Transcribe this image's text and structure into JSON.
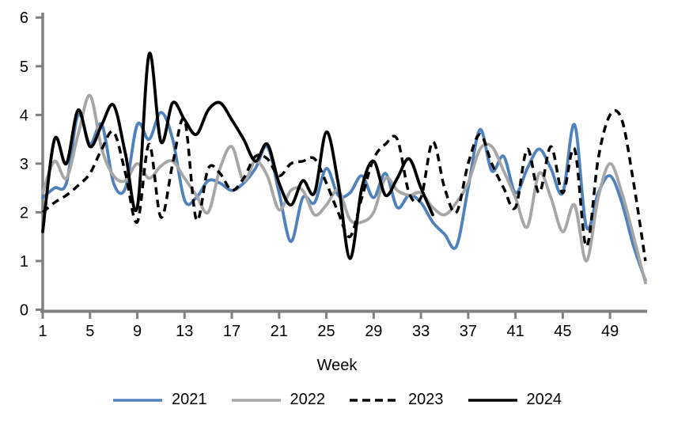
{
  "x_axis_title": "Week",
  "chart_data": {
    "type": "line",
    "title": "",
    "xlabel": "Week",
    "ylabel": "",
    "xlim": [
      1,
      52
    ],
    "ylim": [
      0,
      6
    ],
    "grid": false,
    "legend_position": "bottom",
    "axis_color": "#808080",
    "text_color": "#000000",
    "x_ticks": [
      1,
      5,
      9,
      13,
      17,
      21,
      25,
      29,
      33,
      37,
      41,
      45,
      49
    ],
    "y_ticks": [
      0,
      1,
      2,
      3,
      4,
      5,
      6
    ],
    "x_start_week": 1,
    "series": [
      {
        "name": "2021",
        "color": "#4F81BD",
        "style": "solid",
        "values": [
          2.3,
          2.5,
          2.6,
          4.0,
          3.4,
          3.8,
          2.6,
          2.5,
          3.8,
          3.5,
          4.05,
          3.5,
          2.25,
          2.3,
          2.65,
          2.6,
          2.45,
          2.6,
          2.9,
          3.35,
          2.4,
          1.4,
          2.3,
          2.2,
          2.9,
          2.35,
          2.4,
          2.75,
          2.3,
          2.8,
          2.1,
          2.35,
          2.2,
          1.8,
          1.55,
          1.3,
          2.5,
          3.7,
          2.85,
          3.15,
          2.4,
          2.9,
          3.3,
          2.9,
          2.4,
          3.8,
          1.7,
          2.4,
          2.75,
          2.2,
          1.3,
          0.6
        ]
      },
      {
        "name": "2022",
        "color": "#A6A6A6",
        "style": "solid",
        "values": [
          2.4,
          3.05,
          2.7,
          3.6,
          4.4,
          3.3,
          2.75,
          2.65,
          3.0,
          2.7,
          2.95,
          3.05,
          2.7,
          2.35,
          2.0,
          2.9,
          3.35,
          2.65,
          3.05,
          2.75,
          2.05,
          2.45,
          2.45,
          1.95,
          2.15,
          2.45,
          1.85,
          1.8,
          2.0,
          2.7,
          2.45,
          2.35,
          2.4,
          2.1,
          1.95,
          2.2,
          2.6,
          3.3,
          3.35,
          2.85,
          2.3,
          1.7,
          2.8,
          2.3,
          1.6,
          2.15,
          1.0,
          2.3,
          3.0,
          2.4,
          1.5,
          0.55
        ]
      },
      {
        "name": "2023",
        "color": "#000000",
        "style": "dashed",
        "values": [
          2.0,
          2.2,
          2.35,
          2.55,
          2.8,
          3.3,
          3.65,
          2.8,
          1.8,
          3.4,
          1.9,
          3.0,
          3.9,
          1.85,
          2.9,
          2.8,
          2.45,
          2.7,
          3.15,
          3.1,
          2.75,
          3.0,
          3.05,
          3.1,
          2.6,
          2.0,
          1.5,
          2.3,
          3.1,
          3.4,
          3.5,
          2.4,
          2.3,
          3.45,
          2.5,
          2.0,
          3.0,
          3.6,
          3.0,
          2.5,
          2.1,
          3.3,
          2.4,
          3.35,
          2.4,
          3.3,
          1.3,
          3.1,
          4.0,
          3.9,
          2.6,
          1.0
        ]
      },
      {
        "name": "2024",
        "color": "#000000",
        "style": "solid",
        "values": [
          1.6,
          3.5,
          3.0,
          4.1,
          3.35,
          3.8,
          4.2,
          3.2,
          2.1,
          5.25,
          3.45,
          4.25,
          3.9,
          3.6,
          4.1,
          4.25,
          3.9,
          3.5,
          3.05,
          3.4,
          2.6,
          2.15,
          2.65,
          2.4,
          3.65,
          2.6,
          1.05,
          2.5,
          3.05,
          2.35,
          2.7,
          3.1,
          2.5,
          1.95
        ]
      }
    ]
  }
}
